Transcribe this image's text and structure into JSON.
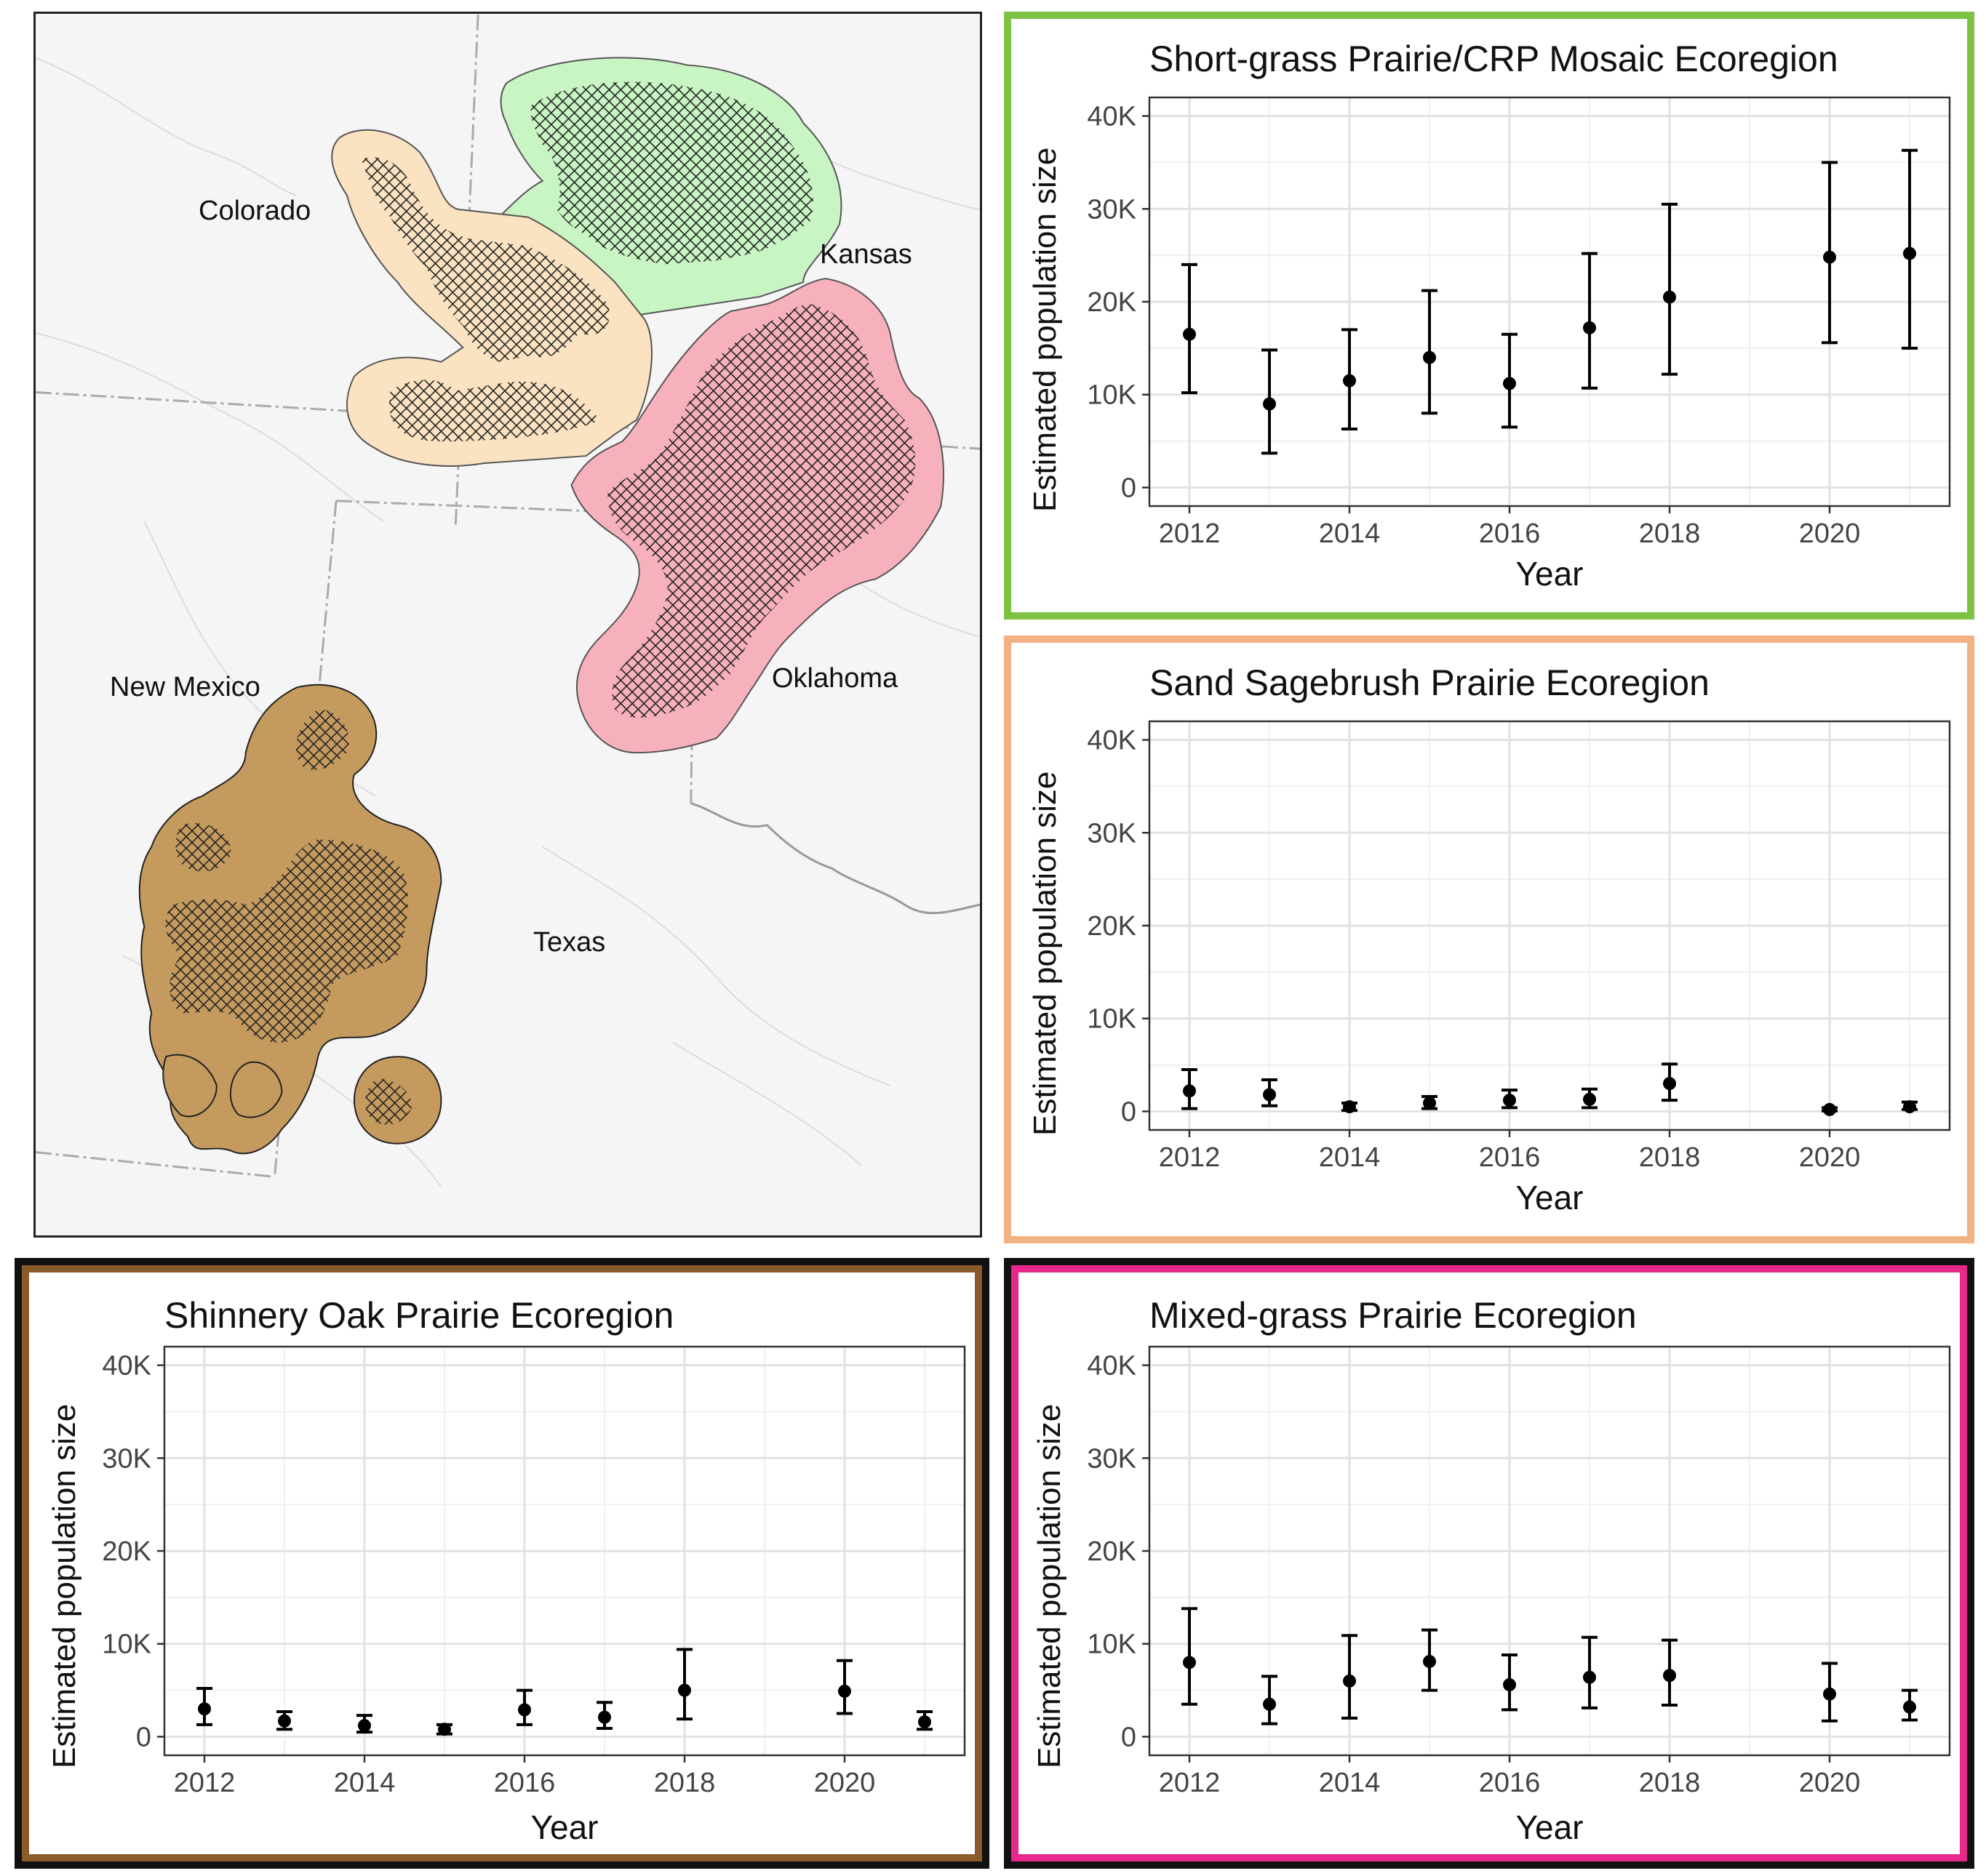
{
  "map": {
    "state_labels": {
      "colorado": "Colorado",
      "kansas": "Kansas",
      "new_mexico": "New Mexico",
      "oklahoma": "Oklahoma",
      "texas": "Texas"
    },
    "colors": {
      "short_grass": "#c8f5c3",
      "sand_sagebrush": "#fbe3c2",
      "mixed_grass": "#f7b1bc",
      "shinnery_oak": "#c49a5e"
    }
  },
  "chart_data": [
    {
      "type": "scatter",
      "title": "Short-grass Prairie/CRP Mosaic Ecoregion",
      "xlabel": "Year",
      "ylabel": "Estimated population size",
      "frame_color": "#7dc242",
      "xlim": [
        2011.5,
        2021.5
      ],
      "ylim": [
        -2000,
        42000
      ],
      "x_ticks": [
        2012,
        2014,
        2016,
        2018,
        2020
      ],
      "y_ticks": [
        0,
        10000,
        20000,
        30000,
        40000
      ],
      "y_tick_labels": [
        "0",
        "10K",
        "20K",
        "30K",
        "40K"
      ],
      "grid": true,
      "points": [
        {
          "x": 2012,
          "y": 16500,
          "lo": 10200,
          "hi": 24000
        },
        {
          "x": 2013,
          "y": 9000,
          "lo": 3700,
          "hi": 14800
        },
        {
          "x": 2014,
          "y": 11500,
          "lo": 6300,
          "hi": 17000
        },
        {
          "x": 2015,
          "y": 14000,
          "lo": 8000,
          "hi": 21200
        },
        {
          "x": 2016,
          "y": 11200,
          "lo": 6500,
          "hi": 16500
        },
        {
          "x": 2017,
          "y": 17200,
          "lo": 10700,
          "hi": 25200
        },
        {
          "x": 2018,
          "y": 20500,
          "lo": 12200,
          "hi": 30500
        },
        {
          "x": 2020,
          "y": 24800,
          "lo": 15600,
          "hi": 35000
        },
        {
          "x": 2021,
          "y": 25200,
          "lo": 15000,
          "hi": 36300
        }
      ]
    },
    {
      "type": "scatter",
      "title": "Sand Sagebrush Prairie Ecoregion",
      "xlabel": "Year",
      "ylabel": "Estimated population size",
      "frame_color": "#f3b283",
      "xlim": [
        2011.5,
        2021.5
      ],
      "ylim": [
        -2000,
        42000
      ],
      "x_ticks": [
        2012,
        2014,
        2016,
        2018,
        2020
      ],
      "y_ticks": [
        0,
        10000,
        20000,
        30000,
        40000
      ],
      "y_tick_labels": [
        "0",
        "10K",
        "20K",
        "30K",
        "40K"
      ],
      "grid": true,
      "points": [
        {
          "x": 2012,
          "y": 2200,
          "lo": 300,
          "hi": 4500
        },
        {
          "x": 2013,
          "y": 1800,
          "lo": 600,
          "hi": 3400
        },
        {
          "x": 2014,
          "y": 500,
          "lo": 100,
          "hi": 900
        },
        {
          "x": 2015,
          "y": 900,
          "lo": 300,
          "hi": 1600
        },
        {
          "x": 2016,
          "y": 1200,
          "lo": 400,
          "hi": 2300
        },
        {
          "x": 2017,
          "y": 1300,
          "lo": 400,
          "hi": 2400
        },
        {
          "x": 2018,
          "y": 3000,
          "lo": 1200,
          "hi": 5100
        },
        {
          "x": 2020,
          "y": 200,
          "lo": 50,
          "hi": 400
        },
        {
          "x": 2021,
          "y": 500,
          "lo": 200,
          "hi": 1000
        }
      ]
    },
    {
      "type": "scatter",
      "title": "Shinnery Oak Prairie Ecoregion",
      "xlabel": "Year",
      "ylabel": "Estimated population size",
      "frame_color": "#8b5a2b",
      "xlim": [
        2011.5,
        2021.5
      ],
      "ylim": [
        -2000,
        42000
      ],
      "x_ticks": [
        2012,
        2014,
        2016,
        2018,
        2020
      ],
      "y_ticks": [
        0,
        10000,
        20000,
        30000,
        40000
      ],
      "y_tick_labels": [
        "0",
        "10K",
        "20K",
        "30K",
        "40K"
      ],
      "grid": true,
      "points": [
        {
          "x": 2012,
          "y": 3000,
          "lo": 1300,
          "hi": 5200
        },
        {
          "x": 2013,
          "y": 1700,
          "lo": 800,
          "hi": 2700
        },
        {
          "x": 2014,
          "y": 1200,
          "lo": 500,
          "hi": 2300
        },
        {
          "x": 2015,
          "y": 800,
          "lo": 300,
          "hi": 1300
        },
        {
          "x": 2016,
          "y": 2900,
          "lo": 1300,
          "hi": 5000
        },
        {
          "x": 2017,
          "y": 2100,
          "lo": 900,
          "hi": 3700
        },
        {
          "x": 2018,
          "y": 5000,
          "lo": 1900,
          "hi": 9400
        },
        {
          "x": 2020,
          "y": 4900,
          "lo": 2500,
          "hi": 8200
        },
        {
          "x": 2021,
          "y": 1600,
          "lo": 800,
          "hi": 2700
        }
      ]
    },
    {
      "type": "scatter",
      "title": "Mixed-grass Prairie Ecoregion",
      "xlabel": "Year",
      "ylabel": "Estimated population size",
      "frame_color": "#e8288a",
      "xlim": [
        2011.5,
        2021.5
      ],
      "ylim": [
        -2000,
        42000
      ],
      "x_ticks": [
        2012,
        2014,
        2016,
        2018,
        2020
      ],
      "y_ticks": [
        0,
        10000,
        20000,
        30000,
        40000
      ],
      "y_tick_labels": [
        "0",
        "10K",
        "20K",
        "30K",
        "40K"
      ],
      "grid": true,
      "points": [
        {
          "x": 2012,
          "y": 8000,
          "lo": 3500,
          "hi": 13800
        },
        {
          "x": 2013,
          "y": 3500,
          "lo": 1400,
          "hi": 6500
        },
        {
          "x": 2014,
          "y": 6000,
          "lo": 2000,
          "hi": 10900
        },
        {
          "x": 2015,
          "y": 8100,
          "lo": 5000,
          "hi": 11500
        },
        {
          "x": 2016,
          "y": 5600,
          "lo": 2900,
          "hi": 8800
        },
        {
          "x": 2017,
          "y": 6400,
          "lo": 3100,
          "hi": 10700
        },
        {
          "x": 2018,
          "y": 6600,
          "lo": 3400,
          "hi": 10400
        },
        {
          "x": 2020,
          "y": 4600,
          "lo": 1700,
          "hi": 7900
        },
        {
          "x": 2021,
          "y": 3200,
          "lo": 1800,
          "hi": 5000
        }
      ]
    }
  ]
}
